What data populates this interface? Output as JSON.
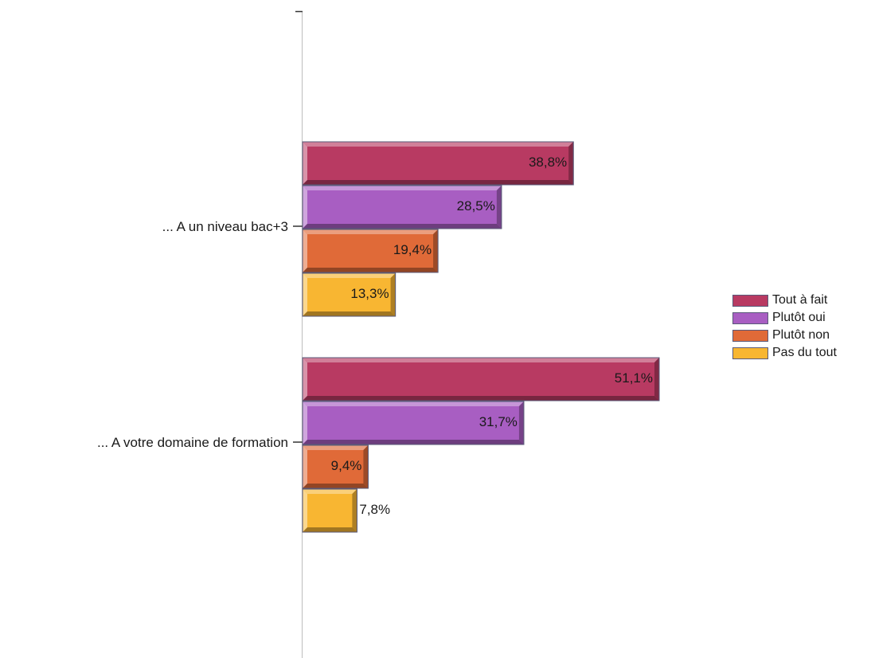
{
  "chart_data": {
    "type": "bar",
    "orientation": "horizontal",
    "categories": [
      "... A un niveau bac+3",
      "... A votre domaine de formation"
    ],
    "series": [
      {
        "name": "Tout à fait",
        "values": [
          38.8,
          51.1
        ],
        "labels": [
          "38,8%",
          "51,1%"
        ],
        "color": "#b83a62"
      },
      {
        "name": "Plutôt oui",
        "values": [
          28.5,
          31.7
        ],
        "labels": [
          "28,5%",
          "31,7%"
        ],
        "color": "#a85ec2"
      },
      {
        "name": "Plutôt non",
        "values": [
          19.4,
          9.4
        ],
        "labels": [
          "19,4%",
          "9,4%"
        ],
        "color": "#e06a38"
      },
      {
        "name": "Pas du tout",
        "values": [
          13.3,
          7.8
        ],
        "labels": [
          "13,3%",
          "7,8%"
        ],
        "color": "#f8b632"
      }
    ],
    "title": "",
    "xlabel": "",
    "ylabel": "",
    "xlim": [
      0,
      85
    ],
    "grid": false,
    "legend_position": "right"
  }
}
